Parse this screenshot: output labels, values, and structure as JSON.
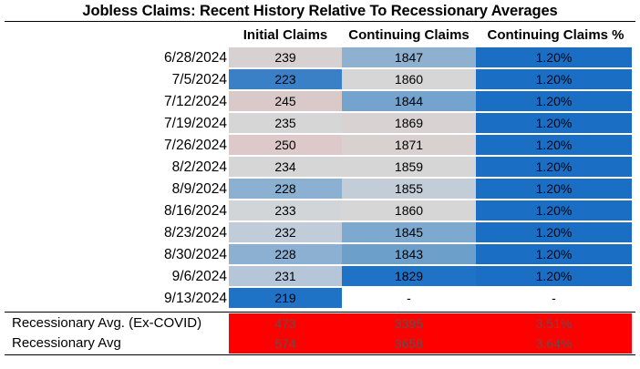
{
  "title": "Jobless Claims: Recent History Relative To Recessionary Averages",
  "headers": [
    "Initial Claims",
    "Continuing Claims",
    "Continuing Claims %"
  ],
  "rows": [
    {
      "date": "6/28/2024",
      "initial": "239",
      "continuing": "1847",
      "pct": "1.20%",
      "c1": "#d7d1d1",
      "c2": "#8eb1d0",
      "c3": "#1a6fc4"
    },
    {
      "date": "7/5/2024",
      "initial": "223",
      "continuing": "1860",
      "pct": "1.20%",
      "c1": "#3a80c6",
      "c2": "#d6d6d6",
      "c3": "#1a6fc4"
    },
    {
      "date": "7/12/2024",
      "initial": "245",
      "continuing": "1844",
      "pct": "1.20%",
      "c1": "#dac9c9",
      "c2": "#74a4cd",
      "c3": "#1a6fc4"
    },
    {
      "date": "7/19/2024",
      "initial": "235",
      "continuing": "1869",
      "pct": "1.20%",
      "c1": "#d6d6d6",
      "c2": "#d8d2d2",
      "c3": "#1a6fc4"
    },
    {
      "date": "7/26/2024",
      "initial": "250",
      "continuing": "1871",
      "pct": "1.20%",
      "c1": "#ddc9c9",
      "c2": "#d9d0d0",
      "c3": "#1a6fc4"
    },
    {
      "date": "8/2/2024",
      "initial": "234",
      "continuing": "1859",
      "pct": "1.20%",
      "c1": "#d6d6d6",
      "c2": "#d6d6d6",
      "c3": "#1a6fc4"
    },
    {
      "date": "8/9/2024",
      "initial": "228",
      "continuing": "1855",
      "pct": "1.20%",
      "c1": "#8cb0d2",
      "c2": "#c2cdd7",
      "c3": "#1a6fc4"
    },
    {
      "date": "8/16/2024",
      "initial": "233",
      "continuing": "1860",
      "pct": "1.20%",
      "c1": "#d2d5d8",
      "c2": "#d6d6d6",
      "c3": "#1a6fc4"
    },
    {
      "date": "8/23/2024",
      "initial": "232",
      "continuing": "1845",
      "pct": "1.20%",
      "c1": "#c0ccd8",
      "c2": "#7ea9cf",
      "c3": "#1a6fc4"
    },
    {
      "date": "8/30/2024",
      "initial": "228",
      "continuing": "1843",
      "pct": "1.20%",
      "c1": "#8cb0d2",
      "c2": "#6d9fcb",
      "c3": "#1a6fc4"
    },
    {
      "date": "9/6/2024",
      "initial": "231",
      "continuing": "1829",
      "pct": "1.20%",
      "c1": "#b4c6d8",
      "c2": "#1f73c7",
      "c3": "#1a6fc4"
    },
    {
      "date": "9/13/2024",
      "initial": "219",
      "continuing": "-",
      "pct": "-",
      "c1": "#1f73c7",
      "c2": "#ffffff",
      "c3": "#ffffff"
    }
  ],
  "recessionary": [
    {
      "label": "Recessionary Avg. (Ex-COVID)",
      "initial": "473",
      "continuing": "3395",
      "pct": "3.51%"
    },
    {
      "label": "Recessionary Avg",
      "initial": "574",
      "continuing": "3658",
      "pct": "3.64%"
    }
  ],
  "colors": {
    "recession_fill": "#ff0000"
  },
  "chart_data": {
    "type": "table",
    "title": "Jobless Claims: Recent History Relative To Recessionary Averages",
    "columns": [
      "Initial Claims",
      "Continuing Claims",
      "Continuing Claims %"
    ],
    "x": [
      "6/28/2024",
      "7/5/2024",
      "7/12/2024",
      "7/19/2024",
      "7/26/2024",
      "8/2/2024",
      "8/9/2024",
      "8/16/2024",
      "8/23/2024",
      "8/30/2024",
      "9/6/2024",
      "9/13/2024"
    ],
    "series": [
      {
        "name": "Initial Claims",
        "values": [
          239,
          223,
          245,
          235,
          250,
          234,
          228,
          233,
          232,
          228,
          231,
          219
        ]
      },
      {
        "name": "Continuing Claims",
        "values": [
          1847,
          1860,
          1844,
          1869,
          1871,
          1859,
          1855,
          1860,
          1845,
          1843,
          1829,
          null
        ]
      },
      {
        "name": "Continuing Claims %",
        "values": [
          1.2,
          1.2,
          1.2,
          1.2,
          1.2,
          1.2,
          1.2,
          1.2,
          1.2,
          1.2,
          1.2,
          null
        ]
      }
    ],
    "reference_rows": [
      {
        "name": "Recessionary Avg. (Ex-COVID)",
        "values": [
          473,
          3395,
          3.51
        ]
      },
      {
        "name": "Recessionary Avg",
        "values": [
          574,
          3658,
          3.64
        ]
      }
    ]
  }
}
